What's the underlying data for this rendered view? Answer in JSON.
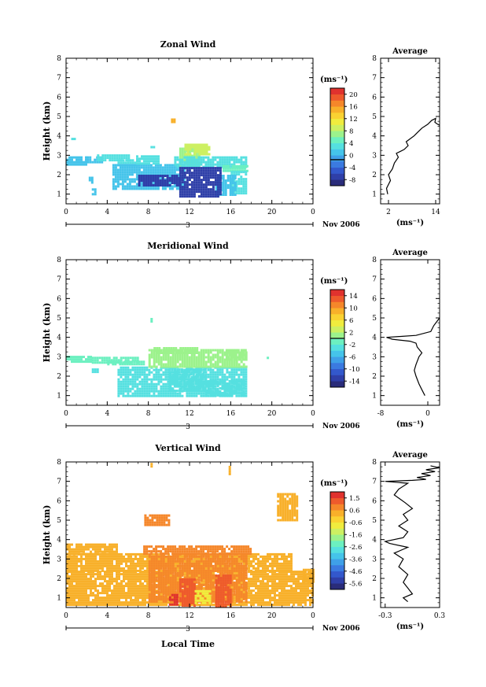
{
  "figure": {
    "xlabel": "Local Time",
    "date_label": "Nov 2006",
    "day_label": "3"
  },
  "chart_data": [
    {
      "id": "zonal",
      "type": "heatmap",
      "title": "Zonal Wind",
      "ylabel": "Height (km)",
      "unit_label": "(ms⁻¹)",
      "xlim": [
        0,
        24
      ],
      "ylim": [
        0.5,
        8
      ],
      "x_ticks": [
        "0",
        "4",
        "8",
        "12",
        "16",
        "20",
        "0"
      ],
      "y_ticks": [
        "1",
        "2",
        "3",
        "4",
        "5",
        "6",
        "7",
        "8"
      ],
      "colorbar": {
        "min": -8,
        "max": 22,
        "labels": [
          "20",
          "16",
          "12",
          "8",
          "4",
          "0",
          "-4",
          "-8"
        ],
        "zero_line": 0
      },
      "patches": [
        {
          "x0": 0.0,
          "x1": 2.0,
          "y0": 2.55,
          "y1": 2.95,
          "v": 2
        },
        {
          "x0": 2.0,
          "x1": 3.5,
          "y0": 2.7,
          "y1": 2.95,
          "v": 3
        },
        {
          "x0": 2.2,
          "x1": 2.6,
          "y0": 1.6,
          "y1": 1.9,
          "v": 3
        },
        {
          "x0": 2.5,
          "x1": 2.8,
          "y0": 1.0,
          "y1": 1.3,
          "v": 3
        },
        {
          "x0": 3.0,
          "x1": 6.0,
          "y0": 2.7,
          "y1": 3.05,
          "v": 4
        },
        {
          "x0": 5.0,
          "x1": 7.0,
          "y0": 2.55,
          "y1": 2.8,
          "v": 4
        },
        {
          "x0": 4.5,
          "x1": 11.5,
          "y0": 1.3,
          "y1": 2.55,
          "v": 3
        },
        {
          "x0": 6.8,
          "x1": 9.0,
          "y0": 2.55,
          "y1": 3.0,
          "v": 4
        },
        {
          "x0": 8.2,
          "x1": 8.5,
          "y0": 3.4,
          "y1": 3.6,
          "v": 5
        },
        {
          "x0": 7.0,
          "x1": 11.0,
          "y0": 1.45,
          "y1": 2.0,
          "v": -5
        },
        {
          "x0": 11.0,
          "x1": 13.0,
          "y0": 2.4,
          "y1": 3.4,
          "v": 7
        },
        {
          "x0": 11.5,
          "x1": 14.0,
          "y0": 3.0,
          "y1": 3.6,
          "v": 10
        },
        {
          "x0": 10.5,
          "x1": 17.5,
          "y0": 2.45,
          "y1": 2.95,
          "v": 5
        },
        {
          "x0": 15.2,
          "x1": 17.5,
          "y0": 2.2,
          "y1": 2.5,
          "v": 6
        },
        {
          "x0": 16.0,
          "x1": 17.6,
          "y0": 1.0,
          "y1": 2.2,
          "v": 4
        },
        {
          "x0": 14.5,
          "x1": 16.5,
          "y0": 1.0,
          "y1": 2.0,
          "v": 3
        },
        {
          "x0": 11.0,
          "x1": 15.0,
          "y0": 0.9,
          "y1": 2.4,
          "v": -6
        },
        {
          "x0": 10.2,
          "x1": 10.5,
          "y0": 4.7,
          "y1": 4.9,
          "v": 16
        },
        {
          "x0": 0.5,
          "x1": 0.8,
          "y0": 3.8,
          "y1": 3.9,
          "v": 5
        }
      ],
      "profile": {
        "title": "Average",
        "xlim": [
          0,
          15
        ],
        "x_ticks": [
          "2",
          "14"
        ],
        "x_tick_values": [
          2,
          14
        ],
        "xlabel": "(ms⁻¹)",
        "points": [
          [
            1.8,
            1.0
          ],
          [
            1.5,
            1.3
          ],
          [
            2.5,
            1.7
          ],
          [
            2.0,
            2.0
          ],
          [
            3.0,
            2.3
          ],
          [
            3.5,
            2.6
          ],
          [
            4.5,
            2.9
          ],
          [
            4.0,
            3.1
          ],
          [
            6.0,
            3.3
          ],
          [
            7.0,
            3.5
          ],
          [
            6.5,
            3.7
          ],
          [
            8.5,
            4.0
          ],
          [
            9.5,
            4.2
          ],
          [
            10.5,
            4.4
          ],
          [
            12.0,
            4.6
          ],
          [
            13.0,
            4.8
          ],
          [
            14.0,
            4.9
          ],
          [
            13.8,
            4.7
          ],
          [
            14.5,
            4.6
          ],
          [
            15.0,
            4.55
          ]
        ]
      }
    },
    {
      "id": "meridional",
      "type": "heatmap",
      "title": "Meridional Wind",
      "ylabel": "Height (km)",
      "unit_label": "(ms⁻¹)",
      "xlim": [
        0,
        24
      ],
      "ylim": [
        0.5,
        8
      ],
      "x_ticks": [
        "0",
        "4",
        "8",
        "12",
        "16",
        "20",
        "0"
      ],
      "y_ticks": [
        "1",
        "2",
        "3",
        "4",
        "5",
        "6",
        "7",
        "8"
      ],
      "colorbar": {
        "min": -16,
        "max": 16,
        "labels": [
          "14",
          "10",
          "6",
          "2",
          "-2",
          "-6",
          "-10",
          "-14"
        ],
        "zero_line": 0
      },
      "patches": [
        {
          "x0": 0.0,
          "x1": 2.5,
          "y0": 2.75,
          "y1": 3.05,
          "v": -2
        },
        {
          "x0": 2.5,
          "x1": 7.0,
          "y0": 2.75,
          "y1": 3.0,
          "v": -2
        },
        {
          "x0": 4.0,
          "x1": 7.5,
          "y0": 2.6,
          "y1": 2.8,
          "v": -2
        },
        {
          "x0": 2.5,
          "x1": 3.0,
          "y0": 2.2,
          "y1": 2.4,
          "v": -3
        },
        {
          "x0": 5.0,
          "x1": 17.5,
          "y0": 1.0,
          "y1": 2.5,
          "v": -4
        },
        {
          "x0": 8.0,
          "x1": 17.5,
          "y0": 2.5,
          "y1": 3.4,
          "v": 1
        },
        {
          "x0": 8.5,
          "x1": 13.0,
          "y0": 3.2,
          "y1": 3.5,
          "v": 1
        },
        {
          "x0": 15.5,
          "x1": 17.5,
          "y0": 2.8,
          "y1": 3.4,
          "v": 0.5
        },
        {
          "x0": 10.0,
          "x1": 13.5,
          "y0": 1.3,
          "y1": 2.4,
          "v": -4
        },
        {
          "x0": 13.5,
          "x1": 17.2,
          "y0": 1.0,
          "y1": 1.8,
          "v": -3
        },
        {
          "x0": 8.2,
          "x1": 8.4,
          "y0": 4.8,
          "y1": 5.0,
          "v": -2
        },
        {
          "x0": 19.5,
          "x1": 19.7,
          "y0": 2.9,
          "y1": 3.0,
          "v": -2
        },
        {
          "x0": 22.5,
          "x1": 22.7,
          "y0": 2.7,
          "y1": 2.8,
          "v": -2
        }
      ],
      "profile": {
        "title": "Average",
        "xlim": [
          -8,
          2
        ],
        "x_ticks": [
          "-8",
          "0"
        ],
        "x_tick_values": [
          -8,
          0
        ],
        "xlabel": "(ms⁻¹)",
        "points": [
          [
            -0.5,
            1.0
          ],
          [
            -1.0,
            1.3
          ],
          [
            -1.5,
            1.6
          ],
          [
            -2.0,
            2.0
          ],
          [
            -2.3,
            2.3
          ],
          [
            -2.0,
            2.6
          ],
          [
            -1.5,
            3.0
          ],
          [
            -1.0,
            3.2
          ],
          [
            -1.8,
            3.5
          ],
          [
            -2.0,
            3.7
          ],
          [
            -3.0,
            3.8
          ],
          [
            -6.0,
            3.9
          ],
          [
            -7.0,
            4.0
          ],
          [
            -2.0,
            4.1
          ],
          [
            0.5,
            4.3
          ],
          [
            1.0,
            4.6
          ],
          [
            1.5,
            4.8
          ],
          [
            2.0,
            5.0
          ]
        ]
      }
    },
    {
      "id": "vertical",
      "type": "heatmap",
      "title": "Vertical Wind",
      "ylabel": "Height (km)",
      "unit_label": "(ms⁻¹)",
      "xlim": [
        0,
        24
      ],
      "ylim": [
        0.5,
        8
      ],
      "x_ticks": [
        "0",
        "4",
        "8",
        "12",
        "16",
        "20",
        "0"
      ],
      "y_ticks": [
        "1",
        "2",
        "3",
        "4",
        "5",
        "6",
        "7",
        "8"
      ],
      "colorbar": {
        "min": -6,
        "max": 2,
        "labels": [
          "1.5",
          "0.6",
          "-0.6",
          "-1.6",
          "-2.6",
          "-3.6",
          "-4.6",
          "-5.6"
        ],
        "zero_line": null
      },
      "patches": [
        {
          "x0": 0.0,
          "x1": 22.0,
          "y0": 2.4,
          "y1": 3.3,
          "v": 0.3
        },
        {
          "x0": 0.0,
          "x1": 5.0,
          "y0": 3.3,
          "y1": 3.8,
          "v": 0.3
        },
        {
          "x0": 0.0,
          "x1": 24.0,
          "y0": 0.6,
          "y1": 2.4,
          "v": 0.4
        },
        {
          "x0": 7.5,
          "x1": 18.0,
          "y0": 3.3,
          "y1": 3.7,
          "v": 0.5
        },
        {
          "x0": 8.0,
          "x1": 17.5,
          "y0": 0.8,
          "y1": 3.3,
          "v": 0.7
        },
        {
          "x0": 11.0,
          "x1": 12.5,
          "y0": 0.6,
          "y1": 2.0,
          "v": 1.4
        },
        {
          "x0": 14.5,
          "x1": 16.0,
          "y0": 0.6,
          "y1": 2.2,
          "v": 1.2
        },
        {
          "x0": 12.5,
          "x1": 14.0,
          "y0": 0.7,
          "y1": 1.4,
          "v": -1.0
        },
        {
          "x0": 10.0,
          "x1": 10.8,
          "y0": 0.6,
          "y1": 1.2,
          "v": 1.5
        },
        {
          "x0": 7.6,
          "x1": 10.0,
          "y0": 4.8,
          "y1": 5.3,
          "v": 0.5
        },
        {
          "x0": 20.5,
          "x1": 22.5,
          "y0": 5.0,
          "y1": 6.4,
          "v": 0.4
        },
        {
          "x0": 8.2,
          "x1": 8.4,
          "y0": 7.8,
          "y1": 7.95,
          "v": 0.4
        },
        {
          "x0": 15.8,
          "x1": 16.0,
          "y0": 7.4,
          "y1": 7.8,
          "v": 0.4
        },
        {
          "x0": 23.0,
          "x1": 24.0,
          "y0": 1.8,
          "y1": 2.5,
          "v": 0.3
        }
      ],
      "profile": {
        "title": "Average",
        "xlim": [
          -0.35,
          0.3
        ],
        "x_ticks": [
          "-0.3",
          "0.3"
        ],
        "x_tick_values": [
          -0.3,
          0.3
        ],
        "xlabel": "(ms⁻¹)",
        "points": [
          [
            -0.05,
            0.8
          ],
          [
            -0.1,
            1.0
          ],
          [
            0.0,
            1.2
          ],
          [
            -0.05,
            1.5
          ],
          [
            -0.1,
            1.8
          ],
          [
            -0.05,
            2.2
          ],
          [
            -0.15,
            2.6
          ],
          [
            -0.1,
            3.0
          ],
          [
            -0.2,
            3.3
          ],
          [
            -0.05,
            3.6
          ],
          [
            -0.25,
            3.8
          ],
          [
            -0.3,
            3.9
          ],
          [
            -0.1,
            4.1
          ],
          [
            -0.05,
            4.4
          ],
          [
            -0.15,
            4.7
          ],
          [
            -0.05,
            5.0
          ],
          [
            -0.1,
            5.3
          ],
          [
            0.0,
            5.6
          ],
          [
            -0.08,
            5.9
          ],
          [
            -0.2,
            6.3
          ],
          [
            -0.15,
            6.6
          ],
          [
            -0.05,
            6.9
          ],
          [
            -0.3,
            7.0
          ],
          [
            0.0,
            7.05
          ],
          [
            0.15,
            7.1
          ],
          [
            0.05,
            7.2
          ],
          [
            0.2,
            7.3
          ],
          [
            0.1,
            7.4
          ],
          [
            0.25,
            7.5
          ],
          [
            0.15,
            7.6
          ],
          [
            0.3,
            7.7
          ],
          [
            0.2,
            7.8
          ]
        ]
      }
    }
  ]
}
